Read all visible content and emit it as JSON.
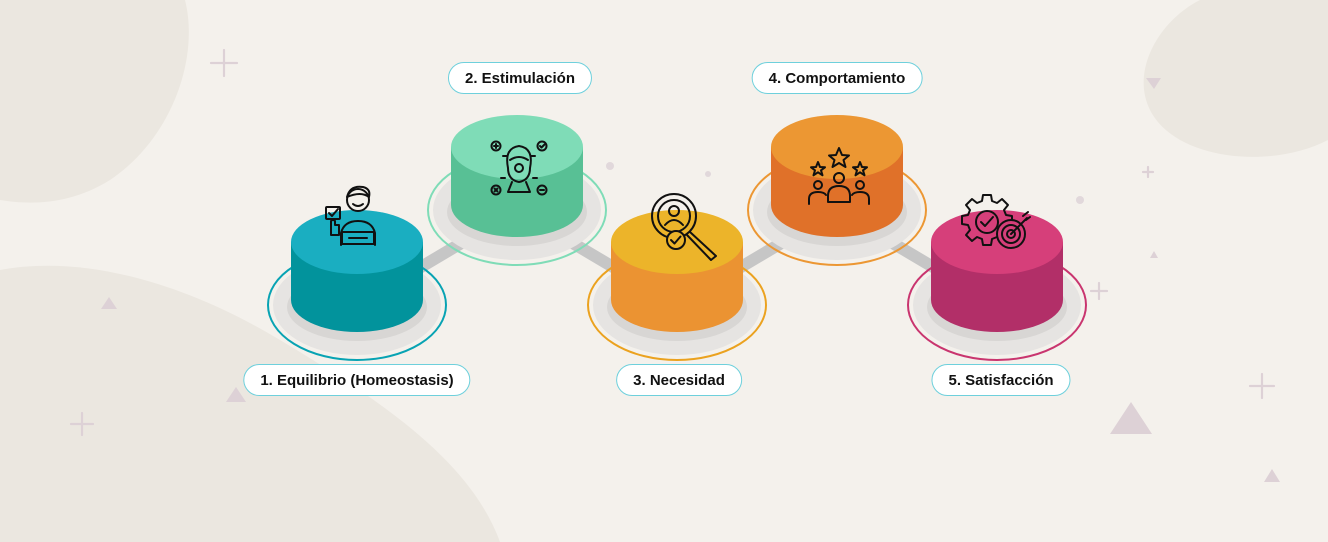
{
  "steps": [
    {
      "label": "1. Equilibrio (Homeostasis)",
      "icon": "person-thumbs-up-checklist-icon",
      "top_color": "#1aaec1",
      "side_color": "#02939c",
      "ring_color": "#08a3b3"
    },
    {
      "label": "2. Estimulación",
      "icon": "head-gears-icon",
      "top_color": "#7fdcb7",
      "side_color": "#58c095",
      "ring_color": "#7fdcb7"
    },
    {
      "label": "3. Necesidad",
      "icon": "magnifier-user-check-icon",
      "top_color": "#ecb42a",
      "side_color": "#eb9332",
      "ring_color": "#eba21f"
    },
    {
      "label": "4. Comportamiento",
      "icon": "team-stars-icon",
      "top_color": "#ec9733",
      "side_color": "#e07129",
      "ring_color": "#ec9733"
    },
    {
      "label": "5. Satisfacción",
      "icon": "gear-target-check-icon",
      "top_color": "#d63f7a",
      "side_color": "#b22f68",
      "ring_color": "#c9356f"
    }
  ],
  "colors": {
    "background": "#f4f1ec",
    "path": "#c6c6c6",
    "label_border": "#6ed0dc",
    "decor": "#ddd1d6"
  }
}
